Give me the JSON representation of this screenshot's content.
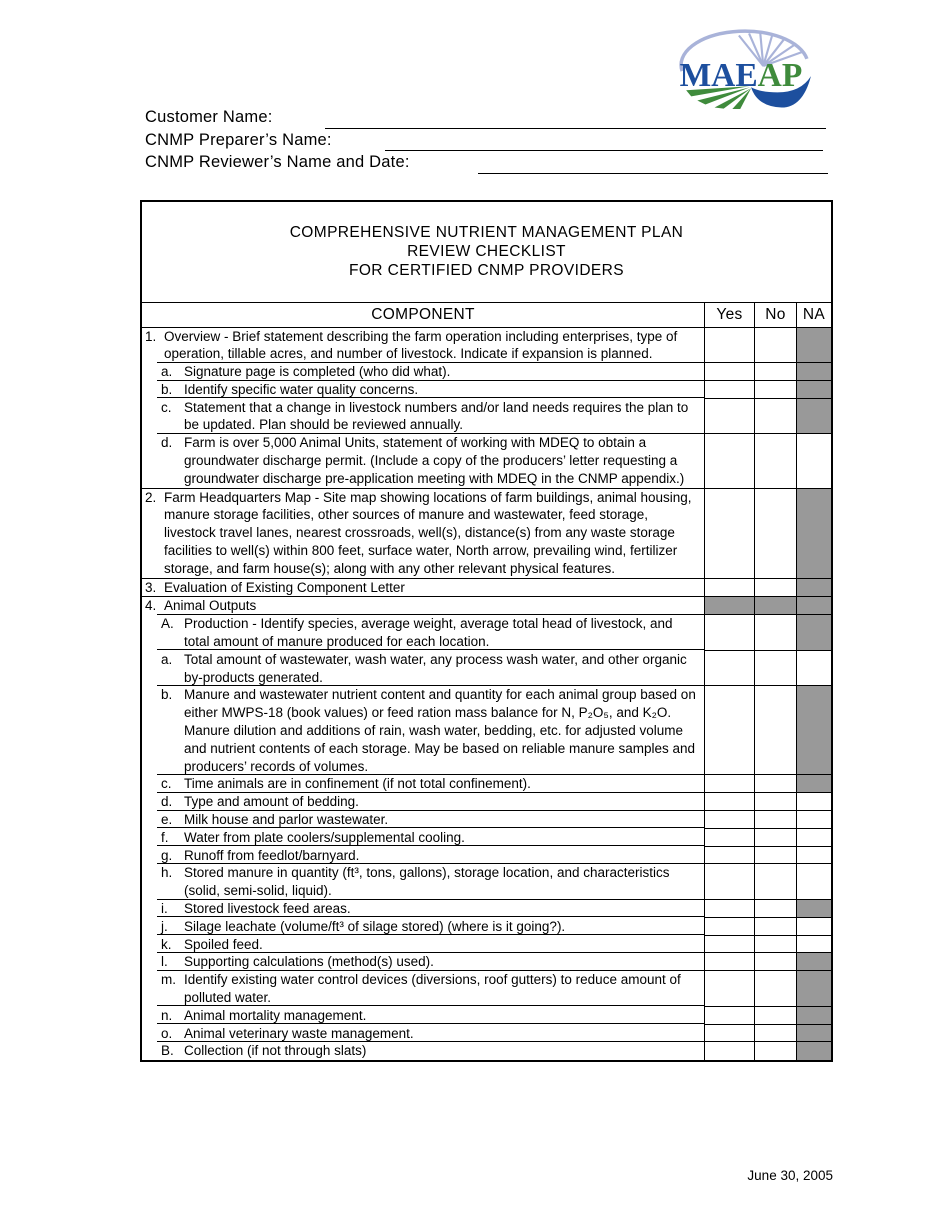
{
  "logo": {
    "name": "MAEAP logo",
    "text_blue": "MAE",
    "text_green": "AP"
  },
  "header_fields": [
    {
      "label": "Customer Name:"
    },
    {
      "label": "CNMP Preparer’s Name:"
    },
    {
      "label": "CNMP Reviewer’s Name and Date:"
    }
  ],
  "checklist": {
    "title_lines": [
      "COMPREHENSIVE NUTRIENT MANAGEMENT PLAN",
      "REVIEW CHECKLIST",
      "FOR CERTIFIED CNMP PROVIDERS"
    ],
    "columns": [
      "COMPONENT",
      "Yes",
      "No",
      "NA"
    ],
    "rows": [
      {
        "num": "1.",
        "level": "top",
        "text": "Overview - Brief statement describing the farm operation including enterprises, type of operation, tillable acres, and number of livestock.  Indicate if expansion is planned.",
        "shaded": [
          "na"
        ]
      },
      {
        "num": "a.",
        "level": "sub",
        "text": "Signature page is completed (who did what).",
        "shaded": [
          "na"
        ]
      },
      {
        "num": "b.",
        "level": "sub",
        "text": "Identify specific water quality concerns.",
        "shaded": [
          "na"
        ]
      },
      {
        "num": "c.",
        "level": "sub",
        "text": "Statement that a change in livestock numbers and/or land needs requires the plan to be updated.  Plan should be reviewed annually.",
        "shaded": [
          "na"
        ]
      },
      {
        "num": "d.",
        "level": "sub",
        "text": "Farm is over 5,000 Animal Units, statement of working with MDEQ to obtain a groundwater discharge permit.  (Include a copy of the producers’ letter requesting a groundwater discharge pre-application meeting with MDEQ in the CNMP appendix.)",
        "shaded": []
      },
      {
        "num": "2.",
        "level": "top",
        "text": "Farm Headquarters Map - Site map showing locations of farm buildings, animal housing, manure storage facilities, other sources of manure and wastewater, feed storage, livestock travel lanes, nearest crossroads, well(s), distance(s) from any waste storage facilities to well(s) within 800 feet, surface water, North arrow, prevailing wind, fertilizer storage, and farm house(s); along with any other relevant physical features.",
        "shaded": [
          "na"
        ]
      },
      {
        "num": "3.",
        "level": "top",
        "text": "Evaluation of Existing Component Letter",
        "shaded": [
          "na"
        ]
      },
      {
        "num": "4.",
        "level": "top",
        "text": "Animal Outputs",
        "shaded": [
          "yes",
          "no",
          "na"
        ]
      },
      {
        "num": "A.",
        "level": "sub",
        "text": "Production - Identify species, average weight, average total head of livestock, and total amount of manure produced for each location.",
        "shaded": [
          "na"
        ]
      },
      {
        "num": "a.",
        "level": "sub",
        "text": "Total amount of wastewater, wash water, any process wash water, and other organic by-products generated.",
        "shaded": []
      },
      {
        "num": "b.",
        "level": "sub",
        "text": "Manure and wastewater nutrient content and quantity for each animal group based on either MWPS-18 (book values) or feed ration mass balance for N, P₂O₅, and K₂O.  Manure dilution and additions of rain, wash water, bedding, etc. for adjusted volume and nutrient contents of each storage.  May be based on reliable manure samples and producers’ records of volumes.",
        "shaded": [
          "na"
        ]
      },
      {
        "num": "c.",
        "level": "sub",
        "text": "Time animals are in confinement (if not total confinement).",
        "shaded": [
          "na"
        ]
      },
      {
        "num": "d.",
        "level": "sub",
        "text": "Type and amount of bedding.",
        "shaded": []
      },
      {
        "num": "e.",
        "level": "sub",
        "text": "Milk house and parlor wastewater.",
        "shaded": []
      },
      {
        "num": "f.",
        "level": "sub",
        "text": "Water from plate coolers/supplemental cooling.",
        "shaded": []
      },
      {
        "num": "g.",
        "level": "sub",
        "text": "Runoff from feedlot/barnyard.",
        "shaded": []
      },
      {
        "num": "h.",
        "level": "sub",
        "text": "Stored manure in quantity (ft³, tons, gallons), storage location, and characteristics (solid, semi-solid, liquid).",
        "shaded": []
      },
      {
        "num": "i.",
        "level": "sub",
        "text": "Stored livestock feed areas.",
        "shaded": [
          "na"
        ]
      },
      {
        "num": "j.",
        "level": "sub",
        "text": "Silage leachate (volume/ft³ of silage stored) (where is it going?).",
        "shaded": []
      },
      {
        "num": "k.",
        "level": "sub",
        "text": "Spoiled feed.",
        "shaded": []
      },
      {
        "num": "l.",
        "level": "sub",
        "text": "Supporting calculations (method(s) used).",
        "shaded": [
          "na"
        ]
      },
      {
        "num": "m.",
        "level": "sub",
        "text": "Identify existing water control devices (diversions, roof gutters) to reduce amount of polluted water.",
        "shaded": [
          "na"
        ]
      },
      {
        "num": "n.",
        "level": "sub",
        "text": "Animal mortality management.",
        "shaded": [
          "na"
        ]
      },
      {
        "num": "o.",
        "level": "sub",
        "text": "Animal veterinary waste management.",
        "shaded": [
          "na"
        ]
      },
      {
        "num": "B.",
        "level": "sub",
        "text": "Collection (if not through slats)",
        "shaded": [
          "na"
        ]
      }
    ]
  },
  "footer": {
    "date": "June 30, 2005"
  },
  "colors": {
    "shade_gray": "#999999",
    "logo_blue": "#1d4f9e",
    "logo_green": "#3f8b3c",
    "logo_light_blue": "#a9b3d9"
  }
}
